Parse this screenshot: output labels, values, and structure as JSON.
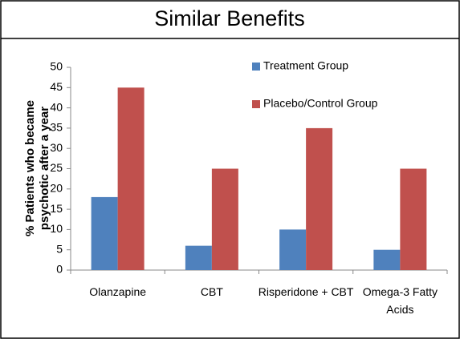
{
  "chart_data": {
    "type": "bar",
    "title": "Similar Benefits",
    "y_label": [
      "% Patients who became",
      "psychotic after a year"
    ],
    "categories": [
      "Olanzapine",
      "CBT",
      "Risperidone + CBT",
      "Omega-3 Fatty Acids"
    ],
    "series": [
      {
        "name": "Treatment Group",
        "color": "#4f81bd",
        "values": [
          18,
          6,
          10,
          5
        ]
      },
      {
        "name": "Placebo/Control Group",
        "color": "#c0504d",
        "values": [
          45,
          25,
          35,
          25
        ]
      }
    ],
    "ylim": [
      0,
      50
    ],
    "yticks": [
      0,
      5,
      10,
      15,
      20,
      25,
      30,
      35,
      40,
      45,
      50
    ],
    "grid": false
  }
}
